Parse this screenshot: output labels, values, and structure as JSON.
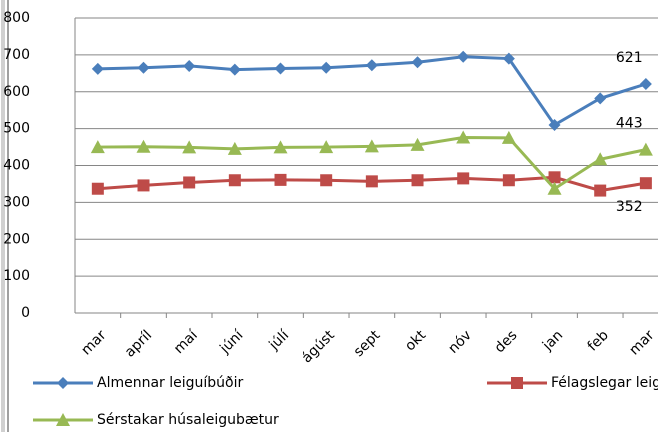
{
  "chart_data": {
    "type": "line",
    "categories": [
      "mar",
      "apríl",
      "maí",
      "júní",
      "júlí",
      "ágúst",
      "sept",
      "okt",
      "nóv",
      "des",
      "jan",
      "feb",
      "mar"
    ],
    "series": [
      {
        "name": "Almennar leiguíbúðir",
        "color": "#4a7ebb",
        "marker": "diamond",
        "values": [
          662,
          665,
          670,
          660,
          663,
          665,
          672,
          680,
          695,
          690,
          510,
          582,
          621
        ]
      },
      {
        "name": "Félagslegar leiguíbúðir",
        "color": "#be4b48",
        "marker": "square",
        "values": [
          337,
          346,
          354,
          360,
          361,
          360,
          357,
          360,
          365,
          360,
          368,
          332,
          352
        ]
      },
      {
        "name": "Sérstakar húsaleigubætur",
        "color": "#98b954",
        "marker": "triangle",
        "values": [
          450,
          451,
          449,
          445,
          449,
          450,
          452,
          456,
          476,
          475,
          337,
          417,
          443
        ]
      }
    ],
    "data_labels": "last",
    "ylim": [
      0,
      800
    ],
    "yticks": [
      0,
      100,
      200,
      300,
      400,
      500,
      600,
      700,
      800
    ],
    "grid": true,
    "legend": "bottom"
  }
}
